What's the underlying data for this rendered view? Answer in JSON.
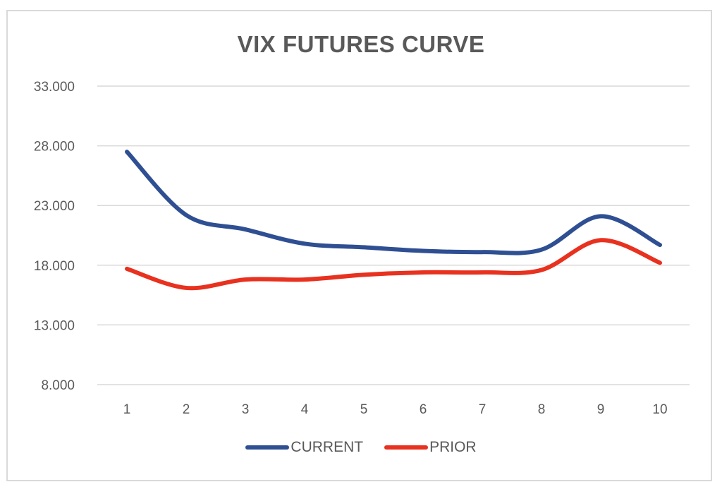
{
  "chart_data": {
    "type": "line",
    "title": "VIX FUTURES CURVE",
    "xlabel": "",
    "ylabel": "",
    "categories": [
      "1",
      "2",
      "3",
      "4",
      "5",
      "6",
      "7",
      "8",
      "9",
      "10"
    ],
    "x": [
      1,
      2,
      3,
      4,
      5,
      6,
      7,
      8,
      9,
      10
    ],
    "series": [
      {
        "name": "CURRENT",
        "color": "#2f4f93",
        "values": [
          27.5,
          22.2,
          21.0,
          19.8,
          19.5,
          19.2,
          19.1,
          19.3,
          22.1,
          19.7
        ]
      },
      {
        "name": "PRIOR",
        "color": "#e8311f",
        "values": [
          17.7,
          16.1,
          16.8,
          16.8,
          17.2,
          17.4,
          17.4,
          17.6,
          20.1,
          18.2
        ]
      }
    ],
    "yticks": [
      "33.000",
      "28.000",
      "23.000",
      "18.000",
      "13.000",
      "8.000"
    ],
    "ytick_values": [
      33,
      28,
      23,
      18,
      13,
      8
    ],
    "ylim": [
      8,
      33
    ],
    "grid": true,
    "smooth": true,
    "legend_position": "bottom"
  },
  "title": "VIX FUTURES CURVE",
  "legend": {
    "items": [
      {
        "label": "CURRENT",
        "color": "#2f4f93"
      },
      {
        "label": "PRIOR",
        "color": "#e8311f"
      }
    ]
  },
  "colors": {
    "gridline": "#d9d9d9",
    "text": "#595959",
    "border": "#d9d9d9"
  }
}
